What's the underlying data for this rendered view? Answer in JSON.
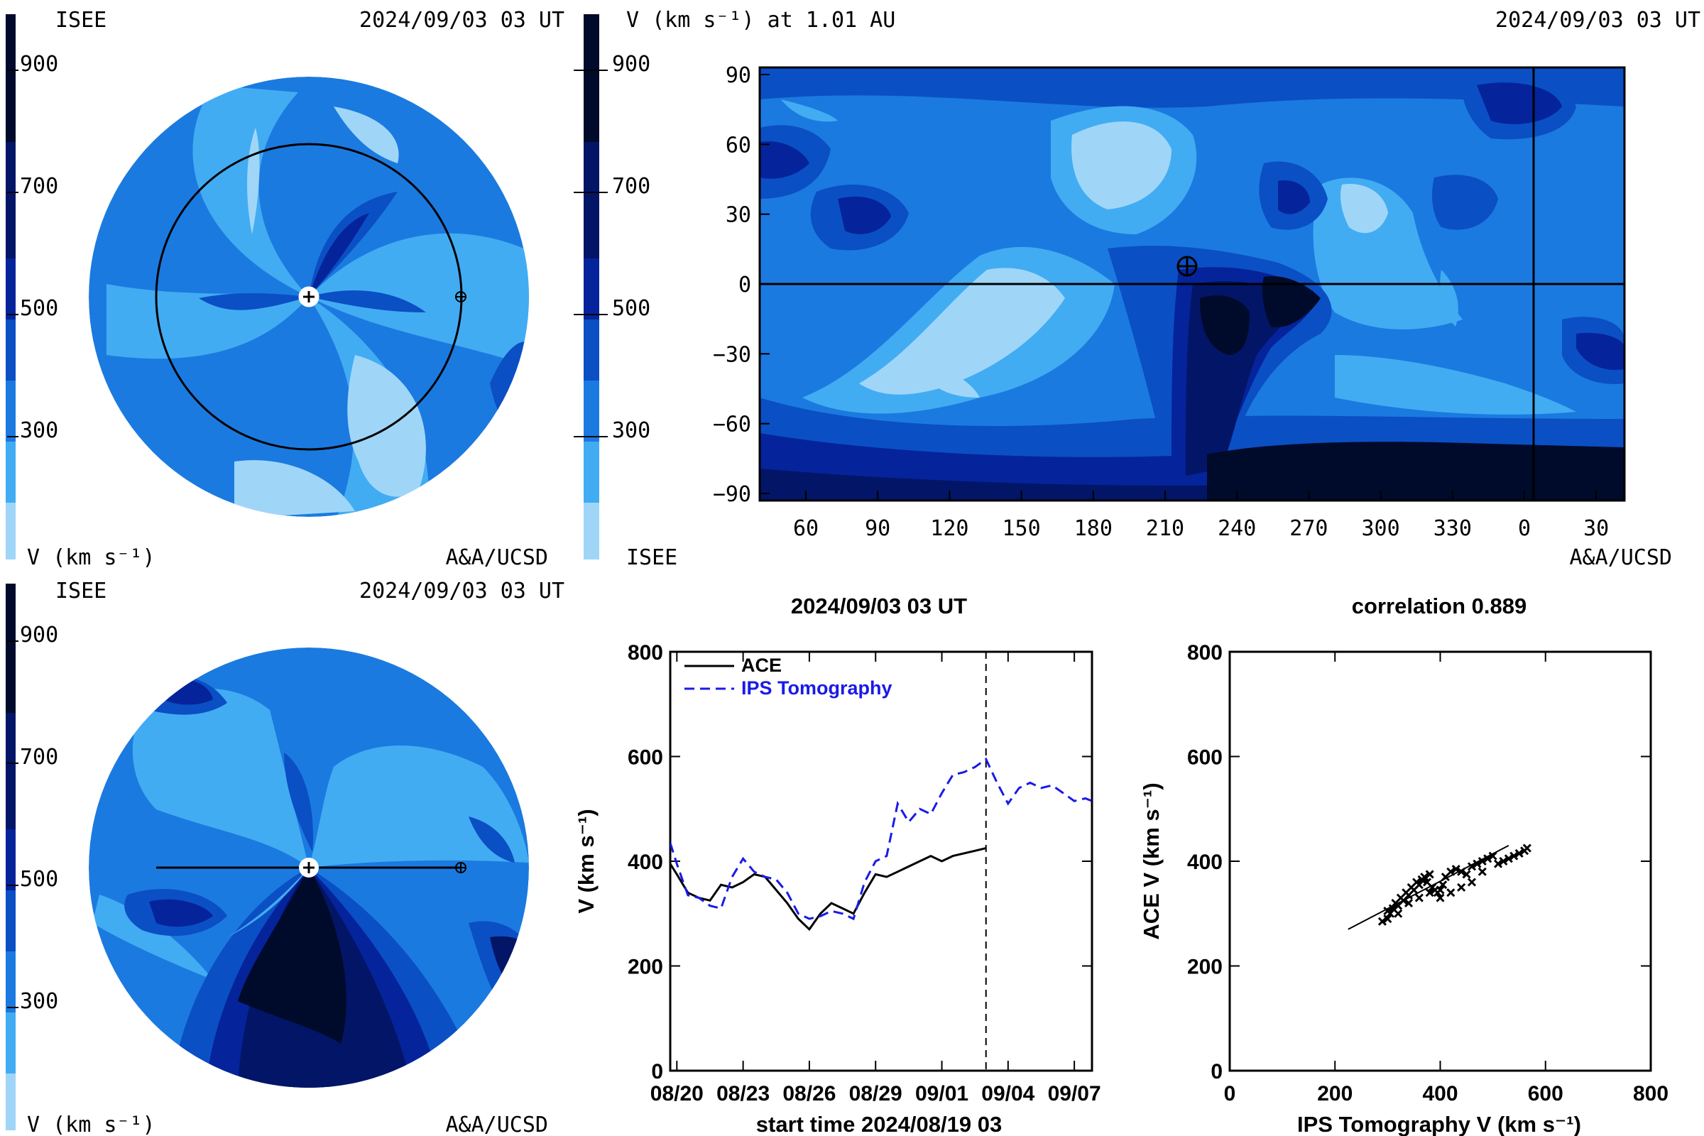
{
  "colors": {
    "level_0": "#9fd6f8",
    "level_1": "#42acf3",
    "level_2": "#1b7ae0",
    "level_3": "#0b4fc4",
    "level_4": "#05239a",
    "level_5": "#031566",
    "level_6": "#000a2a",
    "ace_line": "#000000",
    "ips_line": "#1a1ae6"
  },
  "panels": {
    "top_left": {
      "label_top_left": "ISEE",
      "label_top_right": "2024/09/03 03 UT",
      "label_bottom_left": "V (km s⁻¹)",
      "label_bottom_right": "A&A/UCSD",
      "colorbar_ticks": [
        "900",
        "700",
        "500",
        "300"
      ]
    },
    "top_right": {
      "title": "V (km s⁻¹) at 1.01 AU",
      "label_top_right": "2024/09/03 03 UT",
      "label_bottom_left": "ISEE",
      "label_bottom_right": "A&A/UCSD",
      "colorbar_ticks": [
        "900",
        "700",
        "500",
        "300"
      ],
      "y_ticks": [
        "90",
        "60",
        "30",
        "0",
        "−30",
        "−60",
        "−90"
      ],
      "x_ticks": [
        "60",
        "90",
        "120",
        "150",
        "180",
        "210",
        "240",
        "270",
        "300",
        "330",
        "0",
        "30"
      ]
    },
    "bottom_left": {
      "label_top_left": "ISEE",
      "label_top_right": "2024/09/03 03 UT",
      "label_bottom_left": "V (km s⁻¹)",
      "label_bottom_right": "A&A/UCSD",
      "colorbar_ticks": [
        "900",
        "700",
        "500",
        "300"
      ]
    }
  },
  "chart_data": [
    {
      "type": "line",
      "title": "2024/09/03 03 UT",
      "xlabel": "start time 2024/08/19 03",
      "ylabel": "V (km s⁻¹)",
      "ylim": [
        0,
        800
      ],
      "xlim_days": [
        0.7,
        19.8
      ],
      "x_tick_labels": [
        "08/20",
        "08/23",
        "08/26",
        "08/29",
        "09/01",
        "09/04",
        "09/07"
      ],
      "x_tick_days": [
        1,
        4,
        7,
        10,
        13,
        16,
        19
      ],
      "y_ticks": [
        0,
        200,
        400,
        600,
        800
      ],
      "current_time_day": 15.0,
      "legend_position": "top-left",
      "series": [
        {
          "name": "ACE",
          "style": "solid",
          "x": [
            0.7,
            1.0,
            1.5,
            2.0,
            2.5,
            3.0,
            3.5,
            4.0,
            4.5,
            5.0,
            5.5,
            6.0,
            6.5,
            7.0,
            7.5,
            8.0,
            8.5,
            9.0,
            9.5,
            10.0,
            10.5,
            11.0,
            11.5,
            12.0,
            12.5,
            13.0,
            13.5,
            14.0,
            14.5,
            15.0
          ],
          "y": [
            395,
            375,
            340,
            330,
            325,
            355,
            350,
            360,
            375,
            370,
            345,
            320,
            290,
            270,
            300,
            320,
            310,
            300,
            340,
            375,
            370,
            380,
            390,
            400,
            410,
            400,
            410,
            415,
            420,
            425
          ]
        },
        {
          "name": "IPS Tomography",
          "style": "dashed",
          "x": [
            0.7,
            1.0,
            1.5,
            2.0,
            2.5,
            3.0,
            3.5,
            4.0,
            4.5,
            5.0,
            5.5,
            6.0,
            6.5,
            7.0,
            7.5,
            8.0,
            8.5,
            9.0,
            9.5,
            10.0,
            10.5,
            11.0,
            11.5,
            12.0,
            12.5,
            13.0,
            13.5,
            14.0,
            14.5,
            15.0,
            15.5,
            16.0,
            16.5,
            17.0,
            17.5,
            18.0,
            18.5,
            19.0,
            19.5,
            19.8
          ],
          "y": [
            435,
            395,
            335,
            330,
            315,
            310,
            370,
            405,
            380,
            370,
            365,
            340,
            300,
            290,
            295,
            305,
            300,
            290,
            360,
            400,
            410,
            510,
            475,
            500,
            490,
            530,
            565,
            570,
            580,
            595,
            550,
            510,
            540,
            550,
            540,
            545,
            530,
            515,
            520,
            515
          ]
        }
      ]
    },
    {
      "type": "scatter",
      "title": "correlation 0.889",
      "xlabel": "IPS Tomography V (km s⁻¹)",
      "ylabel": "ACE V (km s⁻¹)",
      "xlim": [
        0,
        800
      ],
      "ylim": [
        0,
        800
      ],
      "x_ticks": [
        0,
        200,
        400,
        600,
        800
      ],
      "y_ticks": [
        0,
        200,
        400,
        600,
        800
      ],
      "points": [
        [
          290,
          285
        ],
        [
          300,
          290
        ],
        [
          305,
          300
        ],
        [
          310,
          310
        ],
        [
          315,
          320
        ],
        [
          320,
          315
        ],
        [
          325,
          330
        ],
        [
          330,
          325
        ],
        [
          335,
          340
        ],
        [
          340,
          335
        ],
        [
          345,
          350
        ],
        [
          350,
          345
        ],
        [
          355,
          360
        ],
        [
          360,
          355
        ],
        [
          365,
          365
        ],
        [
          370,
          370
        ],
        [
          375,
          360
        ],
        [
          380,
          375
        ],
        [
          385,
          350
        ],
        [
          390,
          345
        ],
        [
          395,
          340
        ],
        [
          400,
          345
        ],
        [
          405,
          355
        ],
        [
          410,
          370
        ],
        [
          420,
          380
        ],
        [
          430,
          385
        ],
        [
          440,
          380
        ],
        [
          450,
          375
        ],
        [
          460,
          390
        ],
        [
          470,
          395
        ],
        [
          480,
          400
        ],
        [
          490,
          405
        ],
        [
          500,
          410
        ],
        [
          510,
          395
        ],
        [
          520,
          400
        ],
        [
          530,
          405
        ],
        [
          540,
          410
        ],
        [
          550,
          415
        ],
        [
          560,
          420
        ],
        [
          565,
          425
        ],
        [
          300,
          305
        ],
        [
          320,
          300
        ],
        [
          340,
          320
        ],
        [
          360,
          330
        ],
        [
          380,
          340
        ],
        [
          400,
          330
        ],
        [
          420,
          340
        ],
        [
          440,
          350
        ],
        [
          460,
          360
        ],
        [
          480,
          380
        ]
      ],
      "fit_line": {
        "x": [
          225,
          530
        ],
        "y": [
          270,
          430
        ]
      }
    }
  ]
}
